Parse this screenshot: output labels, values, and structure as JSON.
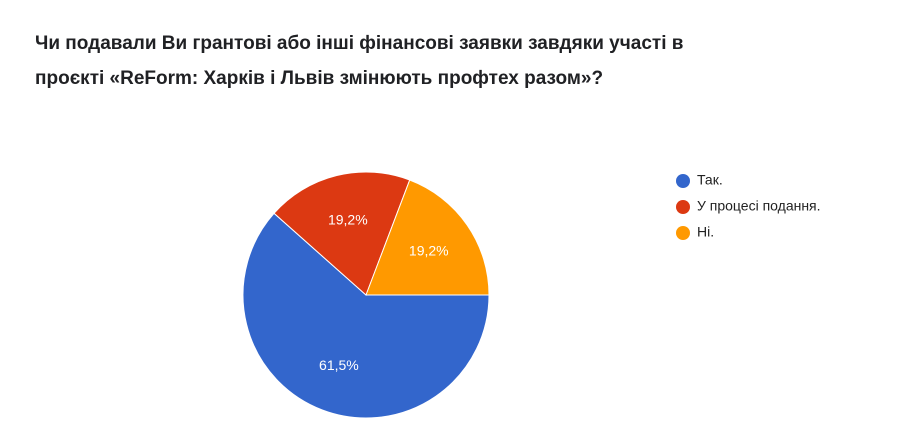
{
  "chart_data": {
    "type": "pie",
    "title": "Чи подавали Ви грантові або інші фінансові заявки завдяки участі в проєкті «ReForm: Харків і Львів змінюють профтех разом»?",
    "categories": [
      "Так.",
      "У процесі подання.",
      "Ні."
    ],
    "values": [
      61.5,
      19.2,
      19.2
    ],
    "value_labels": [
      "61,5%",
      "19,2%",
      "19,2%"
    ],
    "colors": [
      "#3366cc",
      "#dc3912",
      "#ff9900"
    ],
    "legend": "right"
  }
}
